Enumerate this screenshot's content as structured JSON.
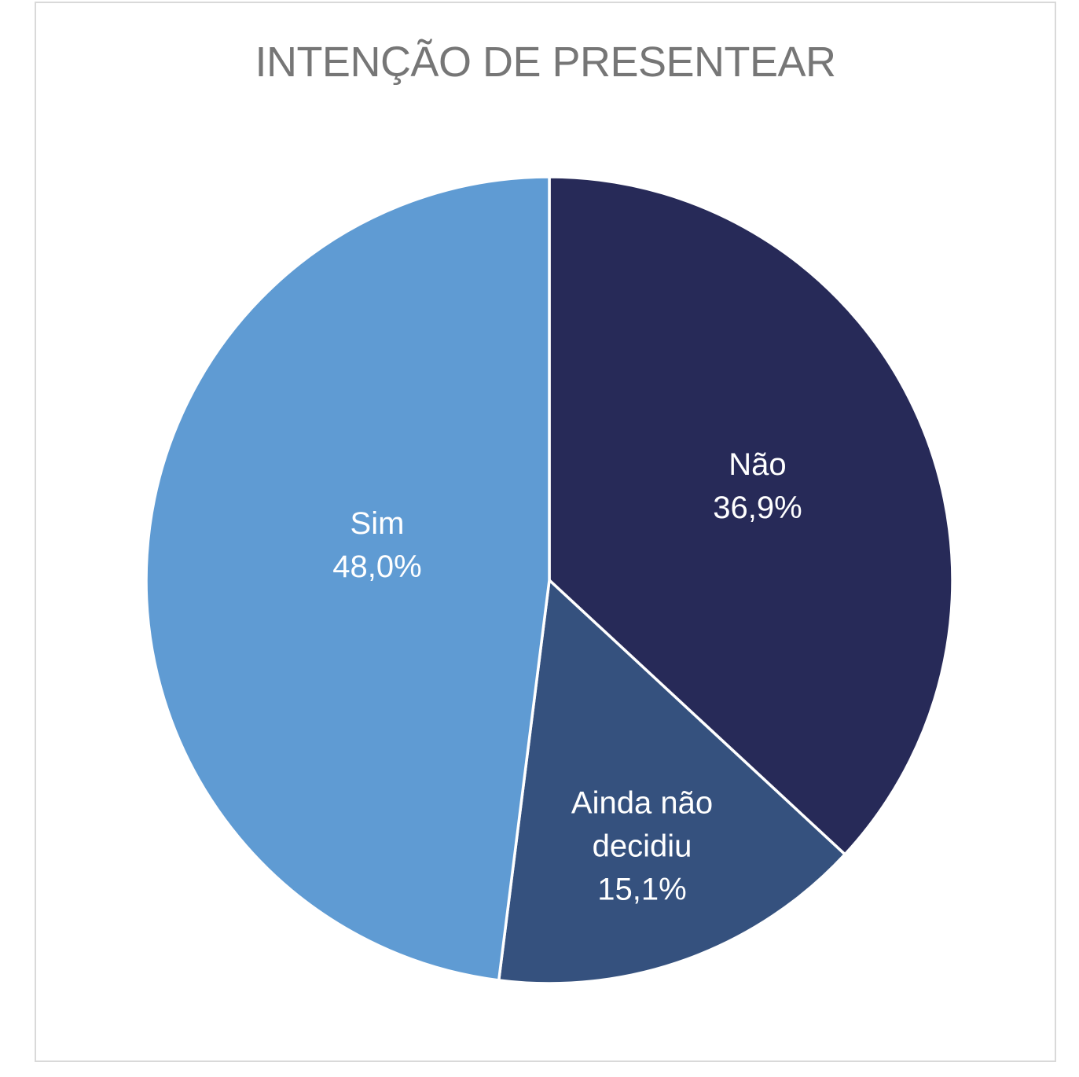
{
  "page": {
    "background_color": "#FFFFFF",
    "frame_border_color": "#D9D9D9",
    "title_color": "#767676",
    "label_text_color": "#FFFFFF",
    "slice_separator_color": "#FFFFFF"
  },
  "chart_data": {
    "type": "pie",
    "title": "INTENÇÃO DE PRESENTEAR",
    "legend": "none",
    "start_angle_deg": 0,
    "direction": "clockwise",
    "decimal_separator": ",",
    "label_style": "inside: category name and percent, white text",
    "categories": [
      "Não",
      "Ainda não decidiu",
      "Sim"
    ],
    "values": [
      36.9,
      15.1,
      48.0
    ],
    "slices": [
      {
        "id": "nao",
        "label": "Não",
        "value": 36.9,
        "display": "36,9%",
        "color": "#272A58"
      },
      {
        "id": "ainda-nao-decidiu",
        "label": "Ainda não decidiu",
        "value": 15.1,
        "display": "15,1%",
        "color": "#35517E"
      },
      {
        "id": "sim",
        "label": "Sim",
        "value": 48.0,
        "display": "48,0%",
        "color": "#5F9BD3"
      }
    ]
  }
}
